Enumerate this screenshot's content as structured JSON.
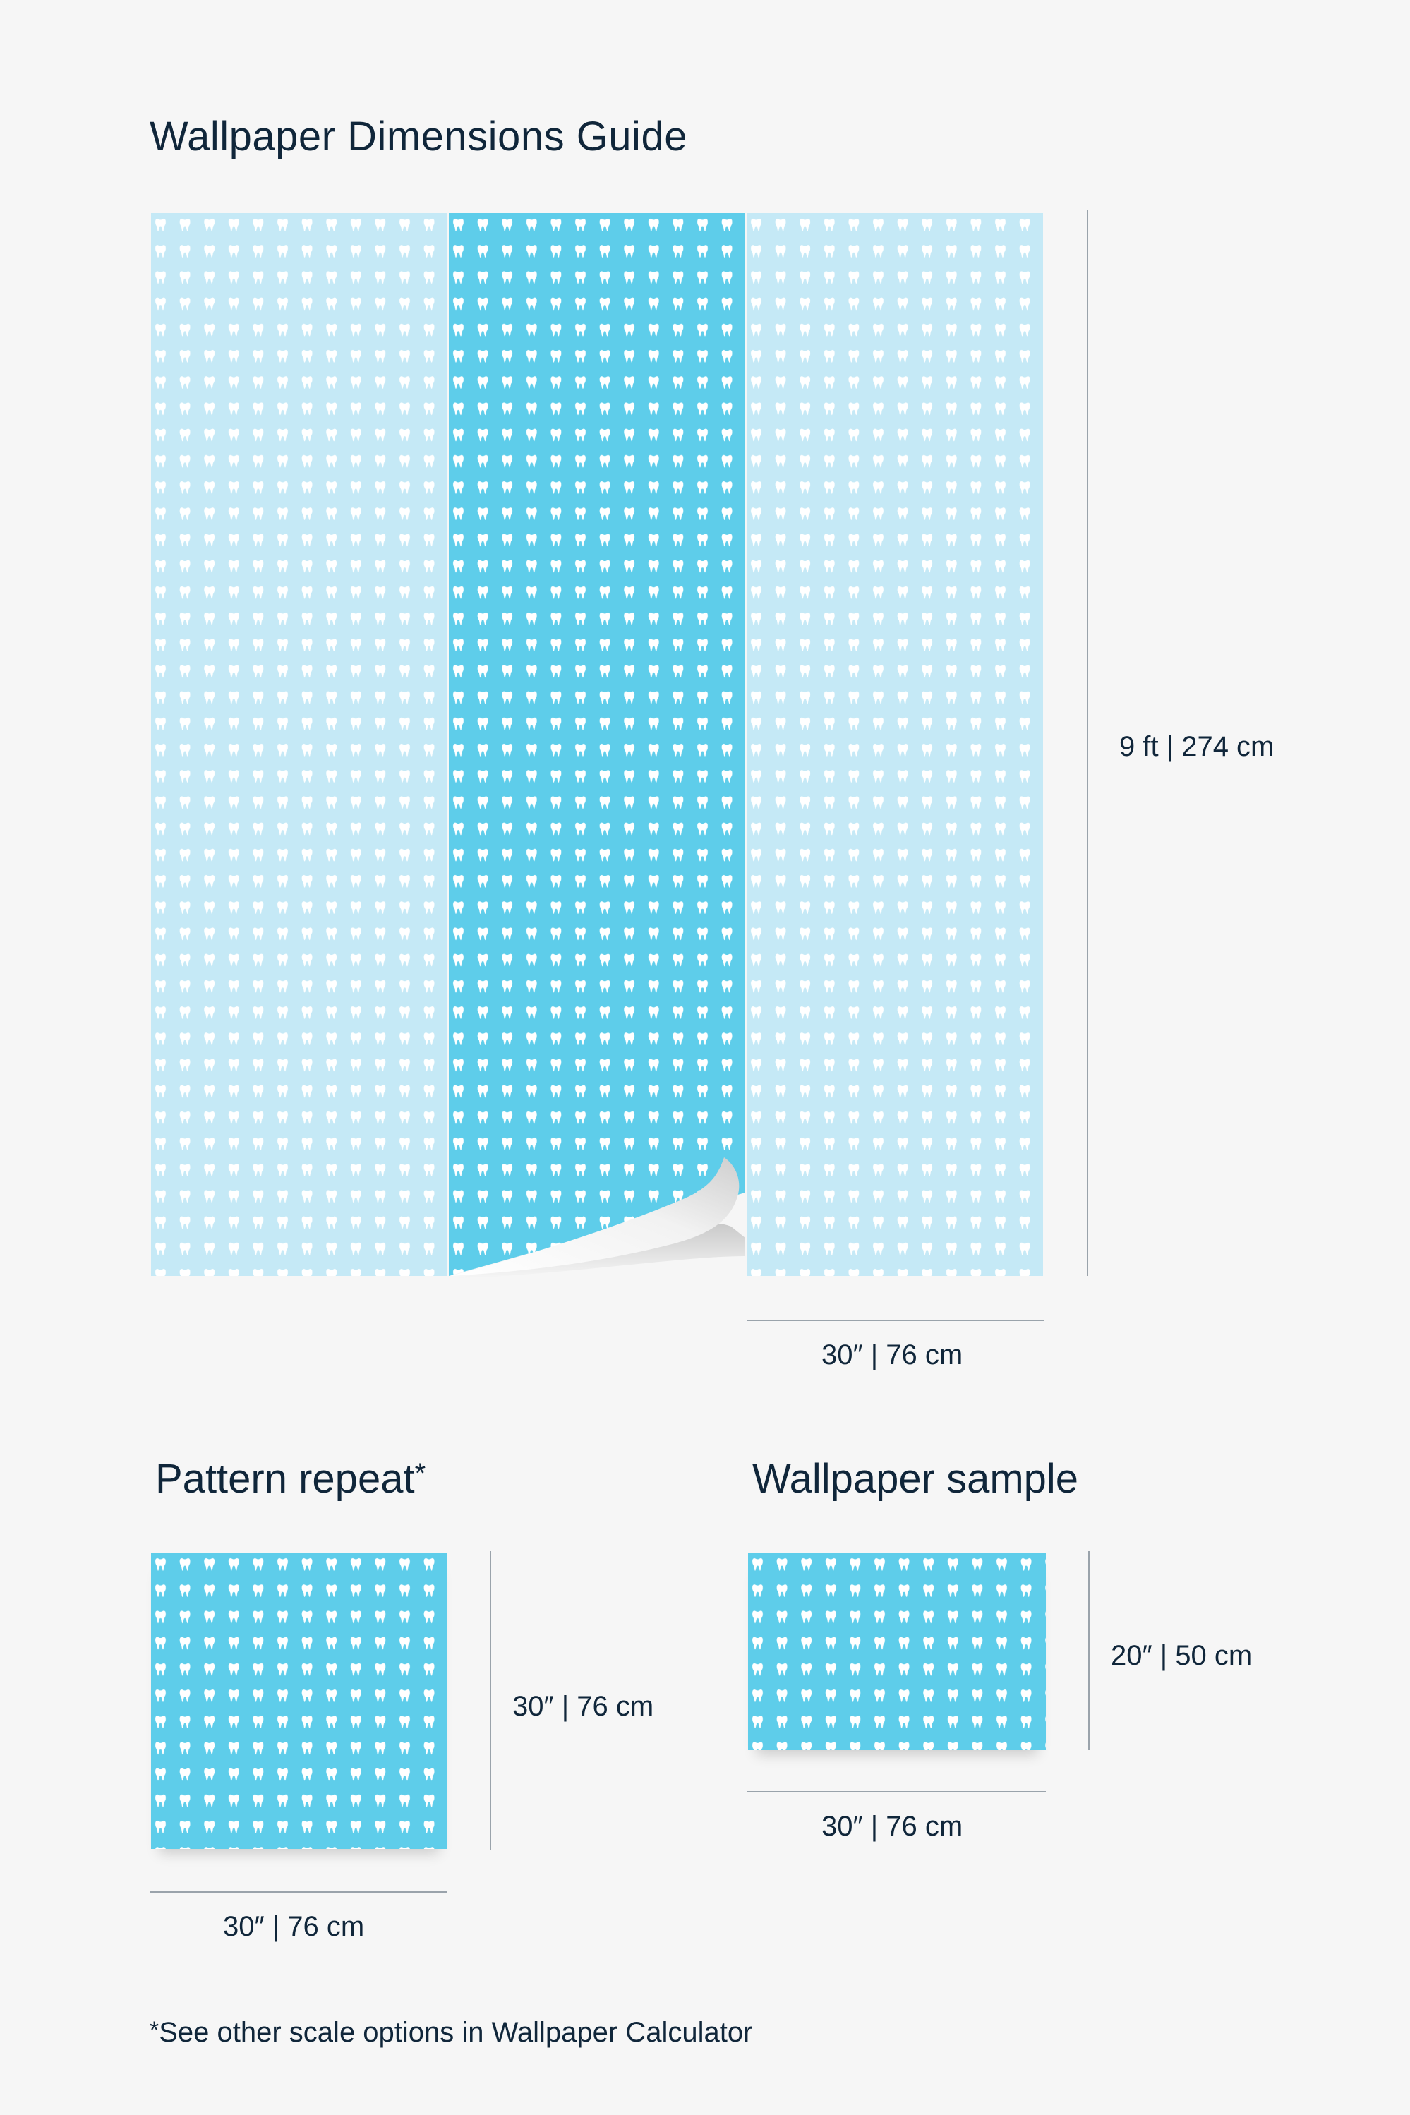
{
  "title": "Wallpaper Dimensions Guide",
  "main_panels": {
    "height_label": "9 ft | 274 cm",
    "width_label": "30″ | 76 cm",
    "colors": {
      "light": "#c5e9f6",
      "dark": "#5ecdea",
      "motif": "#ffffff"
    },
    "motif_icon": "tooth-icon"
  },
  "pattern_repeat": {
    "heading": "Pattern repeat",
    "heading_mark": "*",
    "height_label": "30″ | 76 cm",
    "width_label": "30″ | 76 cm"
  },
  "wallpaper_sample": {
    "heading": "Wallpaper sample",
    "height_label": "20″ | 50 cm",
    "width_label": "30″ | 76 cm"
  },
  "footnote": {
    "mark": "*",
    "text": "See other scale options in Wallpaper Calculator"
  }
}
